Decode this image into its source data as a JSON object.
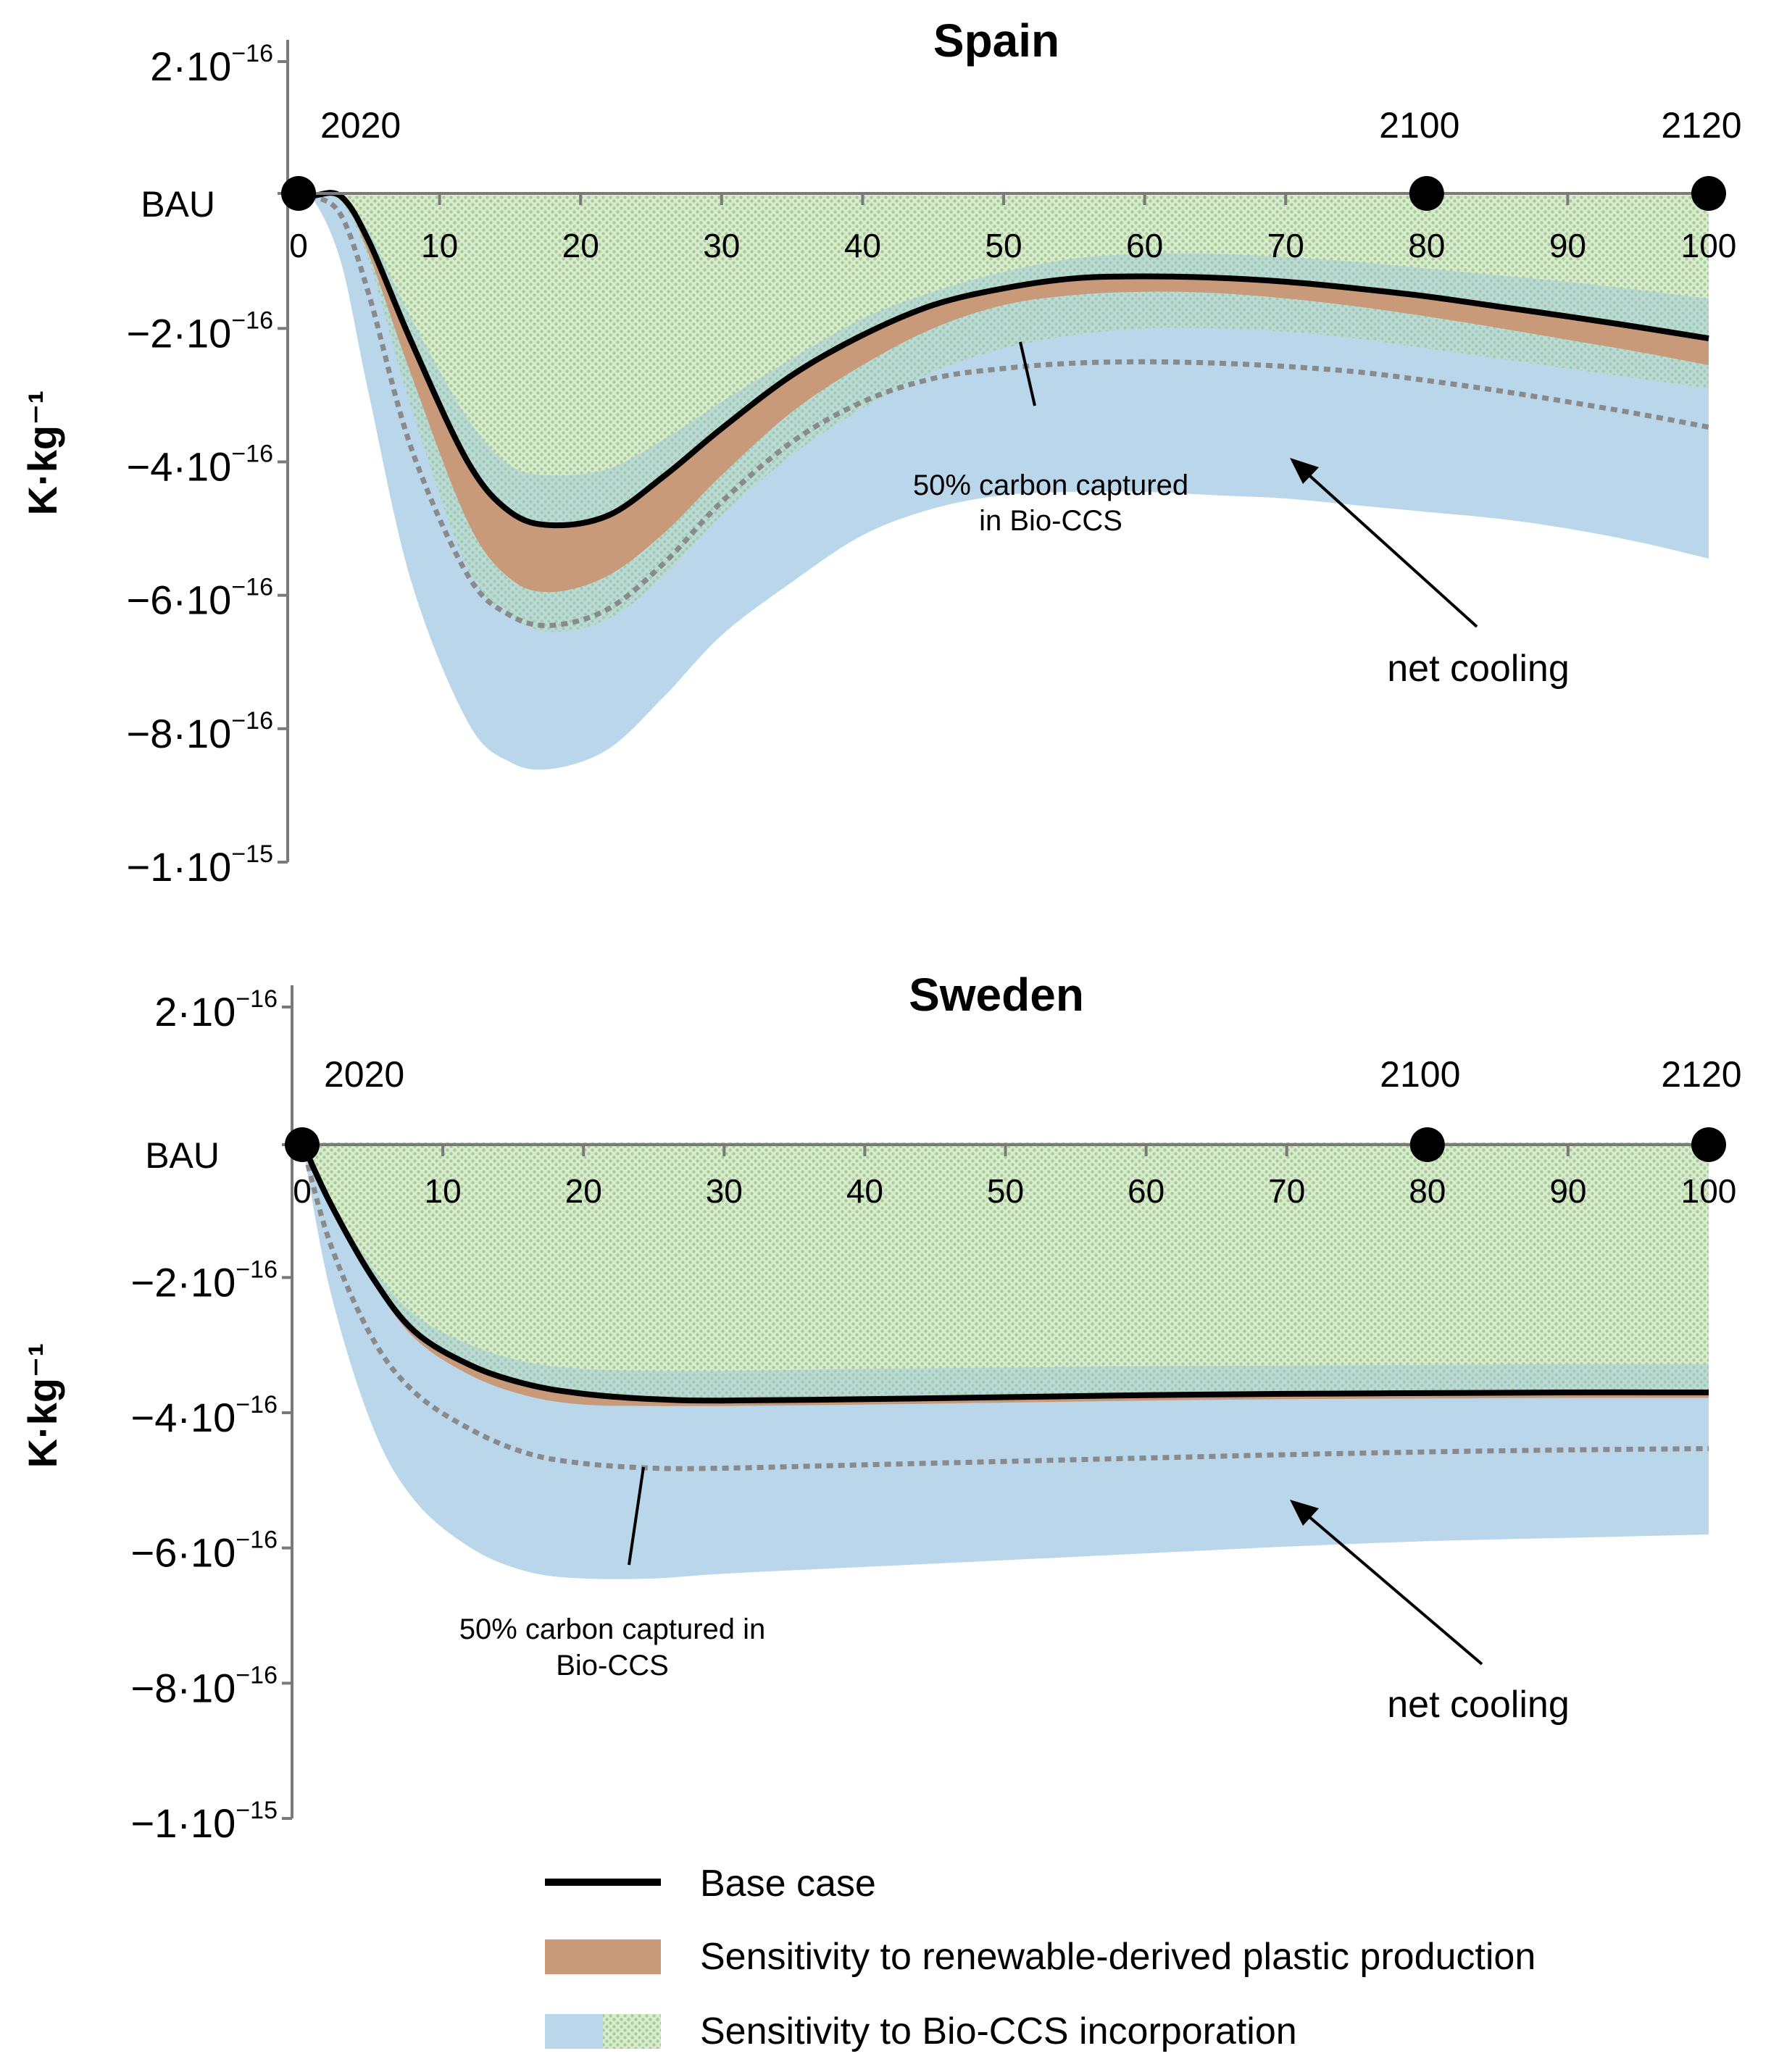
{
  "chart_data": [
    {
      "type": "area",
      "title": "Spain",
      "ylabel": "K·kg⁻¹",
      "y_tick_labels": [
        {
          "value": 2e-16,
          "main": "2·10",
          "exp": "−16"
        },
        {
          "value": 0,
          "main": "BAU",
          "exp": ""
        },
        {
          "value": -2e-16,
          "main": "−2·10",
          "exp": "−16"
        },
        {
          "value": -4e-16,
          "main": "−4·10",
          "exp": "−16"
        },
        {
          "value": -6e-16,
          "main": "−6·10",
          "exp": "−16"
        },
        {
          "value": -8e-16,
          "main": "−8·10",
          "exp": "−16"
        },
        {
          "value": -1e-15,
          "main": "−1·10",
          "exp": "−15"
        }
      ],
      "ylim": [
        -1e-15,
        2e-16
      ],
      "xlim": [
        0,
        100
      ],
      "x_ticks": [
        "0",
        "10",
        "20",
        "30",
        "40",
        "50",
        "60",
        "70",
        "80",
        "90",
        "100"
      ],
      "year_markers": [
        {
          "x": 0,
          "label": "2020"
        },
        {
          "x": 80,
          "label": "2100"
        },
        {
          "x": 100,
          "label": "2120"
        }
      ],
      "x": [
        0,
        1,
        3,
        5,
        8,
        12,
        15,
        18,
        22,
        26,
        30,
        35,
        40,
        45,
        50,
        55,
        60,
        65,
        70,
        75,
        80,
        85,
        90,
        95,
        100
      ],
      "series": [
        {
          "name": "Base case",
          "values": [
            0,
            -1e-18,
            -2e-18,
            -7e-17,
            -2.2e-16,
            -4e-16,
            -4.75e-16,
            -4.95e-16,
            -4.8e-16,
            -4.2e-16,
            -3.5e-16,
            -2.7e-16,
            -2.1e-16,
            -1.65e-16,
            -1.4e-16,
            -1.25e-16,
            -1.22e-16,
            -1.24e-16,
            -1.3e-16,
            -1.4e-16,
            -1.52e-16,
            -1.67e-16,
            -1.82e-16,
            -1.98e-16,
            -2.15e-16
          ]
        },
        {
          "name": "Renewable-derived production (lower)",
          "values": [
            0,
            -1e-18,
            -2e-18,
            -9e-17,
            -2.7e-16,
            -4.9e-16,
            -5.75e-16,
            -5.95e-16,
            -5.7e-16,
            -5.05e-16,
            -4.2e-16,
            -3.25e-16,
            -2.55e-16,
            -2e-16,
            -1.65e-16,
            -1.5e-16,
            -1.45e-16,
            -1.47e-16,
            -1.55e-16,
            -1.67e-16,
            -1.82e-16,
            -1.99e-16,
            -2.17e-16,
            -2.35e-16,
            -2.55e-16
          ]
        },
        {
          "name": "Bio-CCS upper bound",
          "values": [
            0,
            -1e-18,
            -2e-18,
            -5.5e-17,
            -1.85e-16,
            -3.35e-16,
            -4.05e-16,
            -4.2e-16,
            -4.1e-16,
            -3.65e-16,
            -3.1e-16,
            -2.45e-16,
            -1.85e-16,
            -1.45e-16,
            -1.15e-16,
            -9.5e-17,
            -8.8e-17,
            -8.8e-17,
            -9.3e-17,
            -1e-16,
            -1.1e-16,
            -1.2e-16,
            -1.3e-16,
            -1.42e-16,
            -1.55e-16
          ]
        },
        {
          "name": "Bio-CCS green band (lower)",
          "values": [
            0,
            -1e-18,
            -1e-17,
            -1e-16,
            -3.2e-16,
            -5.6e-16,
            -6.3e-16,
            -6.55e-16,
            -6.35e-16,
            -5.7e-16,
            -4.8e-16,
            -3.9e-16,
            -3.2e-16,
            -2.65e-16,
            -2.3e-16,
            -2.1e-16,
            -2e-16,
            -2e-16,
            -2.05e-16,
            -2.15e-16,
            -2.3e-16,
            -2.45e-16,
            -2.6e-16,
            -2.75e-16,
            -2.9e-16
          ]
        },
        {
          "name": "50% carbon captured in Bio-CCS",
          "values": [
            0,
            -2e-18,
            -3e-17,
            -1.5e-16,
            -3.8e-16,
            -5.7e-16,
            -6.3e-16,
            -6.45e-16,
            -6.2e-16,
            -5.5e-16,
            -4.6e-16,
            -3.7e-16,
            -3.1e-16,
            -2.75e-16,
            -2.6e-16,
            -2.52e-16,
            -2.5e-16,
            -2.52e-16,
            -2.57e-16,
            -2.65e-16,
            -2.78e-16,
            -2.93e-16,
            -3.1e-16,
            -3.28e-16,
            -3.48e-16
          ]
        },
        {
          "name": "Bio-CCS lower bound",
          "values": [
            0,
            -5e-18,
            -1e-16,
            -3e-16,
            -5.8e-16,
            -7.9e-16,
            -8.5e-16,
            -8.6e-16,
            -8.3e-16,
            -7.5e-16,
            -6.6e-16,
            -5.8e-16,
            -5.1e-16,
            -4.7e-16,
            -4.5e-16,
            -4.45e-16,
            -4.45e-16,
            -4.5e-16,
            -4.55e-16,
            -4.65e-16,
            -4.75e-16,
            -4.85e-16,
            -5e-16,
            -5.2e-16,
            -5.45e-16
          ]
        }
      ],
      "annotations": [
        "50% carbon captured",
        "in Bio-CCS",
        "net cooling"
      ]
    },
    {
      "type": "area",
      "title": "Sweden",
      "ylabel": "K·kg⁻¹",
      "y_tick_labels": [
        {
          "value": 2e-16,
          "main": "2·10",
          "exp": "−16"
        },
        {
          "value": 0,
          "main": "BAU",
          "exp": ""
        },
        {
          "value": -2e-16,
          "main": "−2·10",
          "exp": "−16"
        },
        {
          "value": -4e-16,
          "main": "−4·10",
          "exp": "−16"
        },
        {
          "value": -6e-16,
          "main": "−6·10",
          "exp": "−16"
        },
        {
          "value": -8e-16,
          "main": "−8·10",
          "exp": "−16"
        },
        {
          "value": -1e-15,
          "main": "−1·10",
          "exp": "−15"
        }
      ],
      "ylim": [
        -1e-15,
        2e-16
      ],
      "xlim": [
        0,
        100
      ],
      "x_ticks": [
        "0",
        "10",
        "20",
        "30",
        "40",
        "50",
        "60",
        "70",
        "80",
        "90",
        "100"
      ],
      "year_markers": [
        {
          "x": 0,
          "label": "2020"
        },
        {
          "x": 80,
          "label": "2100"
        },
        {
          "x": 100,
          "label": "2120"
        }
      ],
      "x": [
        0,
        2,
        5,
        8,
        12,
        16,
        20,
        25,
        30,
        40,
        50,
        60,
        70,
        80,
        90,
        100
      ],
      "series": [
        {
          "name": "Base case",
          "values": [
            0,
            -9e-17,
            -2e-16,
            -2.8e-16,
            -3.3e-16,
            -3.58e-16,
            -3.72e-16,
            -3.8e-16,
            -3.82e-16,
            -3.8e-16,
            -3.77e-16,
            -3.74e-16,
            -3.72e-16,
            -3.71e-16,
            -3.7e-16,
            -3.7e-16
          ]
        },
        {
          "name": "Renewable-derived production (lower)",
          "values": [
            0,
            -9e-17,
            -2.05e-16,
            -2.9e-16,
            -3.45e-16,
            -3.75e-16,
            -3.88e-16,
            -3.9e-16,
            -3.9e-16,
            -3.88e-16,
            -3.85e-16,
            -3.82e-16,
            -3.8e-16,
            -3.79e-16,
            -3.78e-16,
            -3.78e-16
          ]
        },
        {
          "name": "Bio-CCS upper bound",
          "values": [
            0,
            -8.5e-17,
            -1.85e-16,
            -2.55e-16,
            -3e-16,
            -3.25e-16,
            -3.35e-16,
            -3.38e-16,
            -3.38e-16,
            -3.35e-16,
            -3.33e-16,
            -3.31e-16,
            -3.3e-16,
            -3.29e-16,
            -3.28e-16,
            -3.28e-16
          ]
        },
        {
          "name": "50% carbon captured in Bio-CCS",
          "values": [
            0,
            -1.5e-16,
            -2.9e-16,
            -3.7e-16,
            -4.25e-16,
            -4.6e-16,
            -4.75e-16,
            -4.82e-16,
            -4.82e-16,
            -4.77e-16,
            -4.72e-16,
            -4.67e-16,
            -4.62e-16,
            -4.58e-16,
            -4.55e-16,
            -4.53e-16
          ]
        },
        {
          "name": "Bio-CCS lower bound",
          "values": [
            0,
            -2.2e-16,
            -4.2e-16,
            -5.3e-16,
            -6e-16,
            -6.35e-16,
            -6.45e-16,
            -6.45e-16,
            -6.38e-16,
            -6.28e-16,
            -6.18e-16,
            -6.08e-16,
            -5.98e-16,
            -5.9e-16,
            -5.85e-16,
            -5.8e-16
          ]
        }
      ],
      "annotations": [
        "50% carbon captured in",
        "Bio-CCS",
        "net cooling"
      ]
    }
  ],
  "legend": {
    "items": [
      {
        "label": "Base case",
        "kind": "line",
        "color": "#000000"
      },
      {
        "label": "Sensitivity to renewable-derived plastic production",
        "kind": "swatch",
        "color": "#c99a7a"
      },
      {
        "label": "Sensitivity to Bio-CCS incorporation",
        "kind": "swatch-split",
        "color": "#b9d6ea",
        "color2": "#b7d6a2"
      }
    ]
  },
  "colors": {
    "base_line": "#000000",
    "orange_band": "#c99a7a",
    "blue_band": "#b9d6ea",
    "green_hatch": "#b7d6a2",
    "dotted_line": "#8a8a8a",
    "axis": "#7a7a7a"
  }
}
